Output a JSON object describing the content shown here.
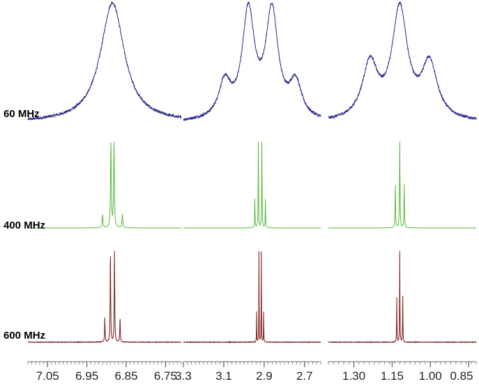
{
  "chart_data": {
    "type": "line",
    "x_scale": "ppm",
    "x_reversed": true,
    "grid": false,
    "legend": "none",
    "rows": [
      {
        "label": "60 MHz",
        "color": "#2b2b8f",
        "spectrometer_mhz": 60,
        "linewidth_hz": 0.6,
        "noise": 0.012
      },
      {
        "label": "400 MHz",
        "color": "#55b83a",
        "spectrometer_mhz": 400,
        "linewidth_hz": 0.45,
        "noise": 0.0
      },
      {
        "label": "600 MHz",
        "color": "#7a1515",
        "spectrometer_mhz": 600,
        "linewidth_hz": 0.45,
        "noise": 0.003
      }
    ],
    "panels": [
      {
        "xlim": [
          7.1,
          6.71
        ],
        "ticks": [
          7.05,
          6.95,
          6.85,
          6.75
        ],
        "tick_labels": [
          "7.05",
          "6.95",
          "6.85",
          "6.75"
        ],
        "system": {
          "type": "AB",
          "nu_a_ppm": 6.895,
          "nu_b_ppm": 6.875,
          "j_hz": 8.5
        }
      },
      {
        "xlim": [
          3.3,
          2.62
        ],
        "ticks": [
          3.3,
          3.1,
          2.9,
          2.7
        ],
        "tick_labels": [
          "3.3",
          "3.1",
          "2.9",
          "2.7"
        ],
        "system": {
          "type": "quartet",
          "center_ppm": 2.92,
          "j_hz": 7.0
        }
      },
      {
        "xlim": [
          1.4,
          0.82
        ],
        "ticks": [
          1.3,
          1.15,
          1.0,
          0.85
        ],
        "tick_labels": [
          "1.30",
          "1.15",
          "1.00",
          "0.85"
        ],
        "system": {
          "type": "triplet",
          "center_ppm": 1.12,
          "j_hz": 7.0
        }
      }
    ]
  }
}
